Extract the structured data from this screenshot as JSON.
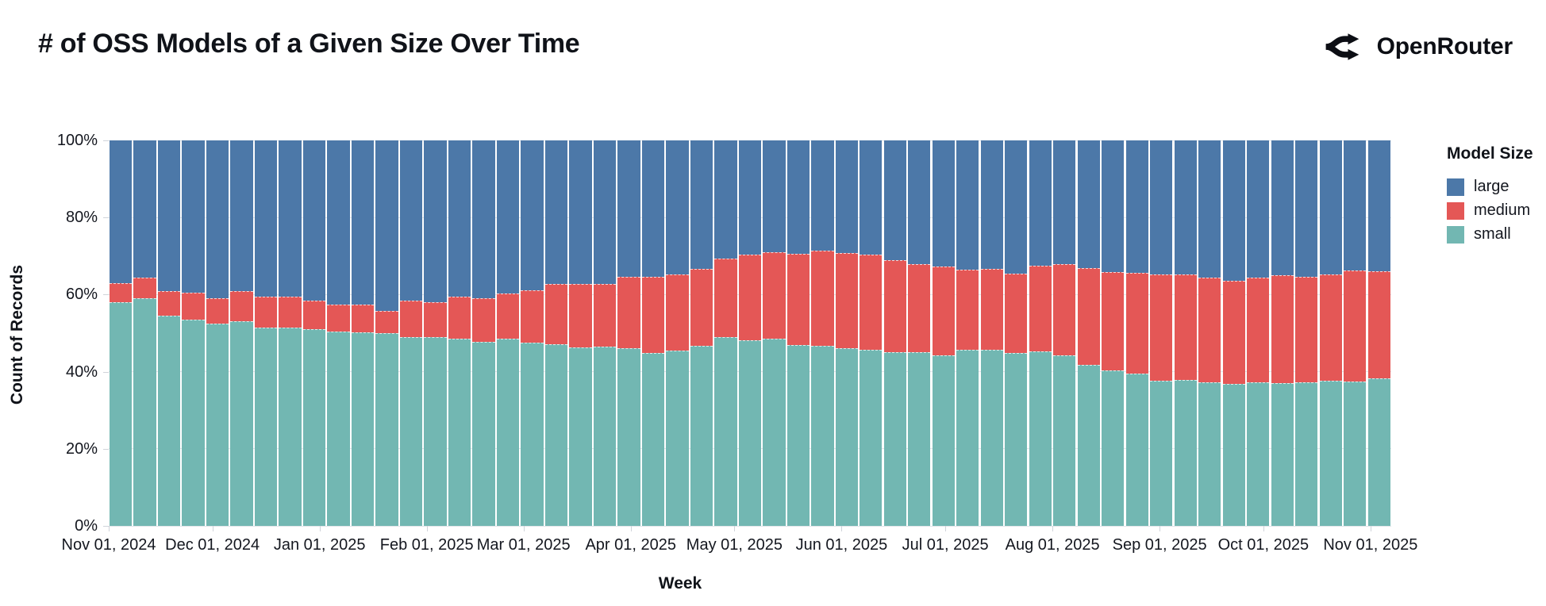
{
  "header": {
    "title": "# of OSS Models of a Given Size Over Time",
    "brand": "OpenRouter"
  },
  "chart_data": {
    "type": "bar",
    "stacked": true,
    "normalized": true,
    "title": "# of OSS Models of a Given Size Over Time",
    "xlabel": "Week",
    "ylabel": "Count of Records",
    "ylim": [
      0,
      100
    ],
    "grid": true,
    "legend_position": "right",
    "legend": {
      "title": "Model Size",
      "items": [
        {
          "label": "large",
          "color": "#4c78a8"
        },
        {
          "label": "medium",
          "color": "#e45756"
        },
        {
          "label": "small",
          "color": "#72b7b2"
        }
      ]
    },
    "y_ticks": [
      {
        "value": 0,
        "label": "0%"
      },
      {
        "value": 20,
        "label": "20%"
      },
      {
        "value": 40,
        "label": "40%"
      },
      {
        "value": 60,
        "label": "60%"
      },
      {
        "value": 80,
        "label": "80%"
      },
      {
        "value": 100,
        "label": "100%"
      }
    ],
    "x_ticks": [
      {
        "date": "2024-11-01",
        "label": "Nov 01, 2024"
      },
      {
        "date": "2024-12-01",
        "label": "Dec 01, 2024"
      },
      {
        "date": "2025-01-01",
        "label": "Jan 01, 2025"
      },
      {
        "date": "2025-02-01",
        "label": "Feb 01, 2025"
      },
      {
        "date": "2025-03-01",
        "label": "Mar 01, 2025"
      },
      {
        "date": "2025-04-01",
        "label": "Apr 01, 2025"
      },
      {
        "date": "2025-05-01",
        "label": "May 01, 2025"
      },
      {
        "date": "2025-06-01",
        "label": "Jun 01, 2025"
      },
      {
        "date": "2025-07-01",
        "label": "Jul 01, 2025"
      },
      {
        "date": "2025-08-01",
        "label": "Aug 01, 2025"
      },
      {
        "date": "2025-09-01",
        "label": "Sep 01, 2025"
      },
      {
        "date": "2025-10-01",
        "label": "Oct 01, 2025"
      },
      {
        "date": "2025-11-01",
        "label": "Nov 01, 2025"
      }
    ],
    "weeks": [
      "2024-11-01",
      "2024-11-08",
      "2024-11-15",
      "2024-11-22",
      "2024-11-29",
      "2024-12-06",
      "2024-12-13",
      "2024-12-20",
      "2024-12-27",
      "2025-01-03",
      "2025-01-10",
      "2025-01-17",
      "2025-01-24",
      "2025-01-31",
      "2025-02-07",
      "2025-02-14",
      "2025-02-21",
      "2025-02-28",
      "2025-03-07",
      "2025-03-14",
      "2025-03-21",
      "2025-03-28",
      "2025-04-04",
      "2025-04-11",
      "2025-04-18",
      "2025-04-25",
      "2025-05-02",
      "2025-05-09",
      "2025-05-16",
      "2025-05-23",
      "2025-05-30",
      "2025-06-06",
      "2025-06-13",
      "2025-06-20",
      "2025-06-27",
      "2025-07-04",
      "2025-07-11",
      "2025-07-18",
      "2025-07-25",
      "2025-08-01",
      "2025-08-08",
      "2025-08-15",
      "2025-08-22",
      "2025-08-29",
      "2025-09-05",
      "2025-09-12",
      "2025-09-19",
      "2025-09-26",
      "2025-10-03",
      "2025-10-10",
      "2025-10-17",
      "2025-10-24",
      "2025-10-31"
    ],
    "series": [
      {
        "name": "small",
        "color": "#72b7b2",
        "values": [
          58,
          59,
          54.5,
          53.5,
          52.5,
          53,
          51.5,
          51.5,
          51,
          50.5,
          50.3,
          50,
          49,
          49,
          48.5,
          47.7,
          48.6,
          47.5,
          47.1,
          46.2,
          46.4,
          46,
          44.9,
          45.4,
          46.8,
          49,
          48.1,
          48.6,
          46.9,
          46.8,
          46,
          45.7,
          45.1,
          45.1,
          44.3,
          45.7,
          45.7,
          44.9,
          45.3,
          44.3,
          41.8,
          40.4,
          39.5,
          37.7,
          37.9,
          37.2,
          36.8,
          37.2,
          37,
          37.2,
          37.7,
          37.4,
          38.2
        ]
      },
      {
        "name": "medium",
        "color": "#e45756",
        "values": [
          5,
          5.5,
          6.5,
          7,
          6.5,
          8,
          8,
          8,
          7.5,
          7,
          7.2,
          5.7,
          9.4,
          9,
          11,
          11.4,
          11.7,
          13.6,
          15.7,
          16.5,
          16.4,
          18.6,
          19.7,
          19.8,
          19.9,
          20.3,
          22.3,
          22.3,
          23.7,
          24.5,
          24.8,
          24.7,
          23.9,
          22.9,
          23,
          20.8,
          21,
          20.5,
          22.2,
          23.7,
          25,
          25.4,
          26.1,
          27.5,
          27.3,
          27.2,
          26.7,
          27.2,
          28.1,
          27.4,
          27.6,
          28.9,
          27.8
        ]
      },
      {
        "name": "large",
        "color": "#4c78a8",
        "values": [
          37,
          35.5,
          39,
          39.5,
          41,
          39,
          40.5,
          40.5,
          41.5,
          42.5,
          42.5,
          44.3,
          41.6,
          42,
          40.5,
          40.9,
          39.7,
          38.9,
          37.2,
          37.3,
          37.2,
          35.4,
          35.4,
          34.8,
          33.3,
          30.7,
          29.6,
          29.1,
          29.4,
          28.7,
          29.2,
          29.6,
          31,
          32,
          32.7,
          33.5,
          33.3,
          34.6,
          32.5,
          32,
          33.2,
          34.2,
          34.4,
          34.8,
          34.8,
          35.6,
          36.5,
          35.6,
          34.9,
          35.4,
          34.7,
          33.7,
          34
        ]
      }
    ]
  }
}
